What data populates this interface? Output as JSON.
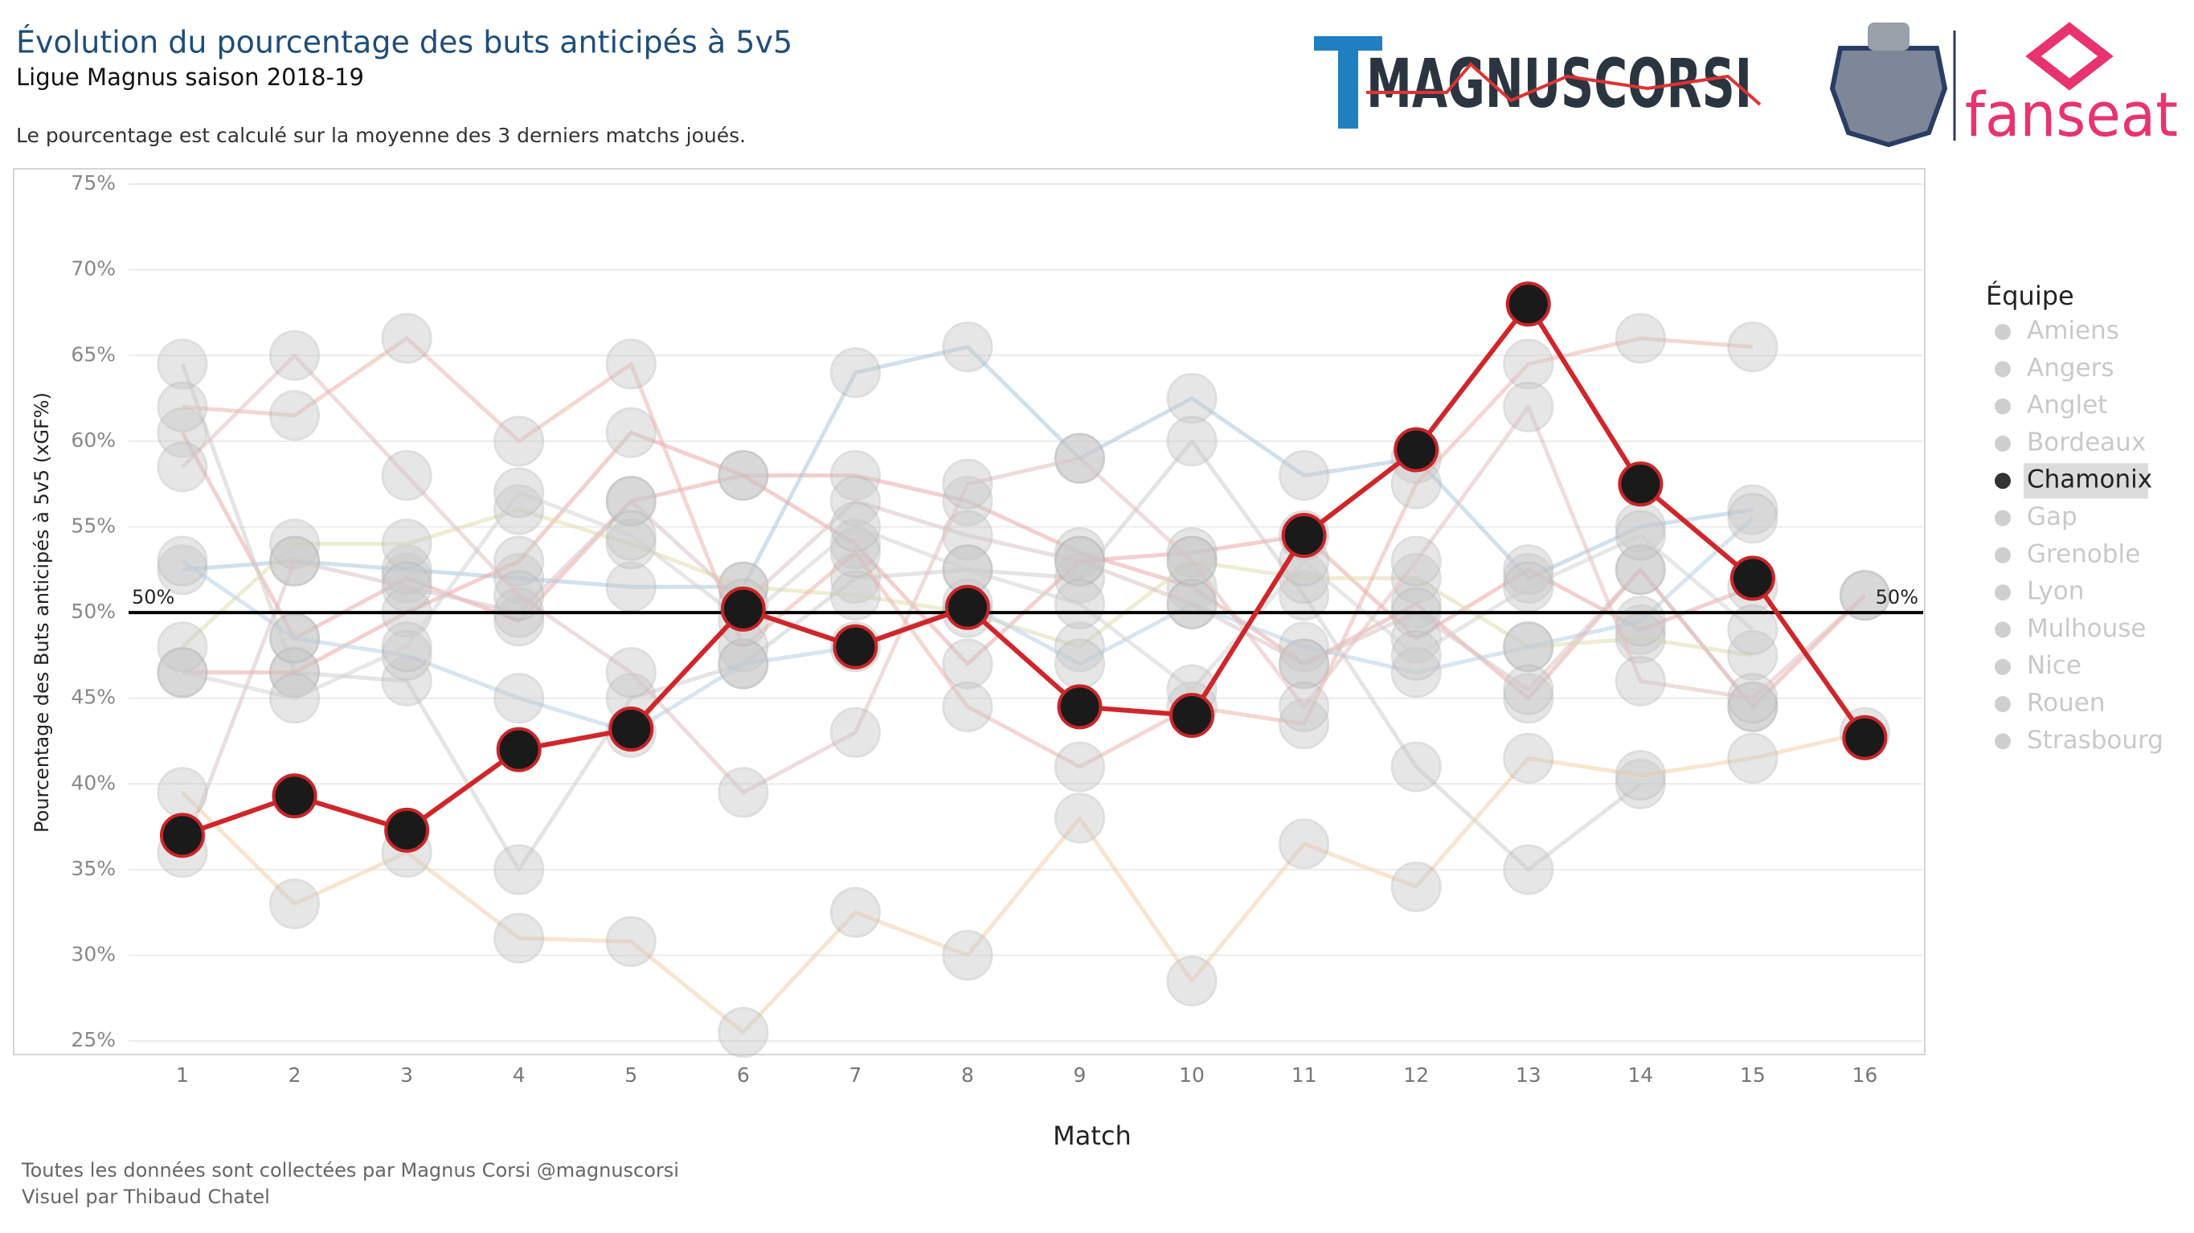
{
  "chart_data": {
    "type": "line",
    "title": "Évolution du pourcentage des buts anticipés à 5v5",
    "subtitle": "Ligue Magnus saison 2018-19",
    "note": "Le pourcentage est calculé sur la moyenne des 3 derniers matchs joués.",
    "logos": [
      "MAGNUSCORSI",
      "fanseat"
    ],
    "x_label": "Match",
    "y_label": "Pourcentage des Buts anticipés à 5v5 (xGF%)",
    "legend_title": "Équipe",
    "highlight": "Chamonix",
    "x": [
      1,
      2,
      3,
      4,
      5,
      6,
      7,
      8,
      9,
      10,
      11,
      12,
      13,
      14,
      15,
      16
    ],
    "xlim": [
      0.52,
      16.52
    ],
    "xticks": [
      1,
      2,
      3,
      4,
      5,
      6,
      7,
      8,
      9,
      10,
      11,
      12,
      13,
      14,
      15,
      16
    ],
    "ylim": [
      24.3,
      75.8
    ],
    "yticks": [
      {
        "value": 25,
        "label": "25%"
      },
      {
        "value": 30,
        "label": "30%"
      },
      {
        "value": 35,
        "label": "35%"
      },
      {
        "value": 40,
        "label": "40%"
      },
      {
        "value": 45,
        "label": "45%"
      },
      {
        "value": 50,
        "label": "50%"
      },
      {
        "value": 55,
        "label": "55%"
      },
      {
        "value": 60,
        "label": "60%"
      },
      {
        "value": 65,
        "label": "65%"
      },
      {
        "value": 70,
        "label": "70%"
      },
      {
        "value": 75,
        "label": "75%"
      }
    ],
    "grid": true,
    "reference_line": {
      "value": 50,
      "label": "50%"
    },
    "series": [
      {
        "name": "Amiens",
        "color": "#e9a9a6",
        "values": [
          60.5,
          48.5,
          52,
          49.5,
          56.5,
          58,
          58,
          56.5,
          53.5,
          51.5,
          47,
          50.5,
          45,
          52.5,
          44.5,
          51
        ]
      },
      {
        "name": "Angers",
        "color": "#a9c7df",
        "values": [
          52.5,
          53,
          52.5,
          52,
          51.5,
          51.5,
          64,
          65.5,
          59,
          62.5,
          58,
          59,
          52,
          55,
          56,
          null
        ]
      },
      {
        "name": "Anglet",
        "color": "#cdcdcd",
        "values": [
          64.5,
          46.5,
          46,
          35,
          45,
          47,
          52,
          52.5,
          52,
          60,
          51,
          41,
          35,
          40,
          null,
          null
        ]
      },
      {
        "name": "Bordeaux",
        "color": "#e9a9a6",
        "values": [
          46.5,
          46.5,
          50,
          53,
          60.5,
          58,
          54,
          47,
          53,
          53.5,
          54.5,
          48.5,
          52.5,
          49,
          51.5,
          null
        ]
      },
      {
        "name": "Chamonix",
        "color": "#d0262a",
        "values": [
          37,
          39.3,
          37.3,
          42,
          43.2,
          50.2,
          48,
          50.3,
          44.5,
          44,
          54.5,
          59.5,
          68,
          57.5,
          52,
          42.7
        ]
      },
      {
        "name": "Gap",
        "color": "#dfdfae",
        "values": [
          48,
          54,
          54,
          56,
          54,
          51.5,
          51,
          50,
          48,
          53,
          52,
          52,
          48,
          48.5,
          47.5,
          null
        ]
      },
      {
        "name": "Grenoble",
        "color": "#ecb4ac",
        "values": [
          62,
          61.5,
          66,
          60,
          64.5,
          48,
          53.5,
          44.5,
          41,
          44.5,
          43.5,
          57.5,
          64.5,
          66,
          65.5,
          null
        ]
      },
      {
        "name": "Lyon",
        "color": "#b6d2e6",
        "values": [
          53,
          48.5,
          47.5,
          45,
          43,
          47,
          48,
          50.5,
          47,
          50.5,
          48,
          46.5,
          48,
          49.5,
          55.5,
          null
        ]
      },
      {
        "name": "Mulhouse",
        "color": "#d9c2c2",
        "values": [
          36,
          53,
          51.5,
          50,
          56.5,
          50.5,
          56.5,
          54.5,
          53,
          50.5,
          47,
          50,
          45.5,
          52.5,
          44.5,
          null
        ]
      },
      {
        "name": "Nice",
        "color": "#d3d3d3",
        "values": [
          46.5,
          45,
          48,
          57,
          54.5,
          49.5,
          55,
          52.5,
          50.5,
          45.5,
          53,
          47.5,
          51.5,
          54.5,
          49,
          null
        ]
      },
      {
        "name": "Rouen",
        "color": "#e4c0c0",
        "values": [
          58.5,
          65,
          58,
          51,
          46.5,
          39.5,
          43,
          57.5,
          59,
          53,
          44.5,
          53,
          62,
          46,
          45,
          51
        ]
      },
      {
        "name": "Strasbourg",
        "color": "#f4cfa7",
        "values": [
          39.5,
          33,
          36,
          31,
          30.8,
          25.5,
          32.5,
          30,
          38,
          28.5,
          36.5,
          34,
          41.5,
          40.5,
          41.5,
          43
        ]
      }
    ]
  },
  "footer": [
    "Toutes les données sont collectées par Magnus Corsi @magnuscorsi",
    "Visuel par Thibaud Chatel"
  ]
}
